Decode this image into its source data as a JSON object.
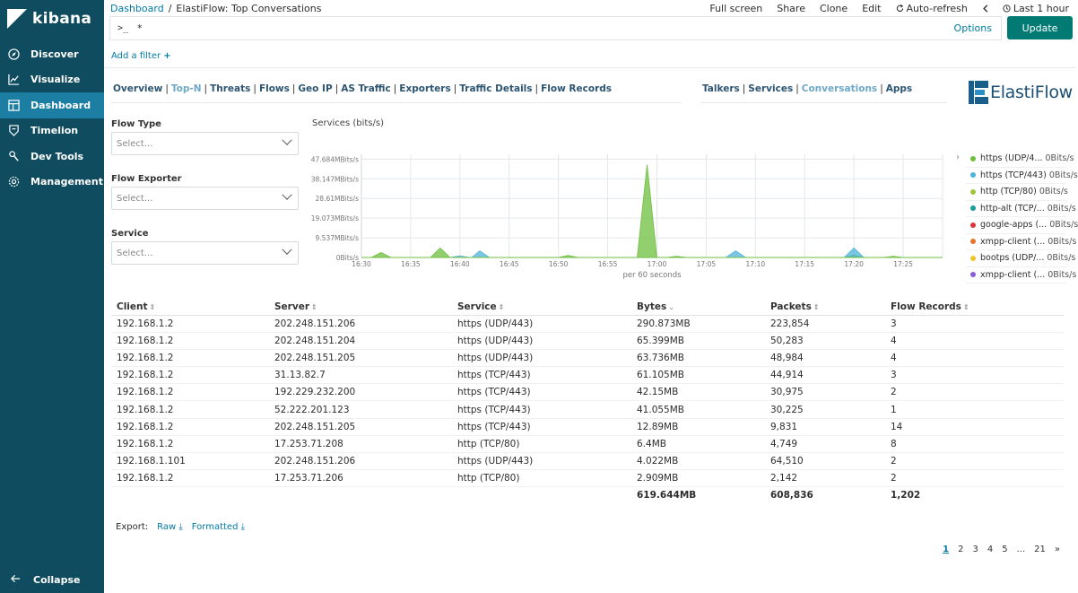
{
  "sidebar": {
    "brand": "kibana",
    "items": [
      {
        "label": "Discover",
        "icon": "compass-icon"
      },
      {
        "label": "Visualize",
        "icon": "chart-icon"
      },
      {
        "label": "Dashboard",
        "icon": "dashboard-icon",
        "active": true
      },
      {
        "label": "Timelion",
        "icon": "shield-icon"
      },
      {
        "label": "Dev Tools",
        "icon": "wrench-icon"
      },
      {
        "label": "Management",
        "icon": "gear-icon"
      }
    ],
    "collapse": "Collapse"
  },
  "breadcrumb": {
    "root": "Dashboard",
    "separator": "/",
    "current": "ElastiFlow: Top Conversations"
  },
  "top_actions": {
    "full_screen": "Full screen",
    "share": "Share",
    "clone": "Clone",
    "edit": "Edit",
    "auto_refresh": "Auto-refresh",
    "time": "Last 1 hour"
  },
  "query": {
    "prompt": ">_",
    "value": "*",
    "options": "Options",
    "update": "Update"
  },
  "filter": {
    "add": "Add a filter"
  },
  "nav_left": [
    "Overview",
    "Top-N",
    "Threats",
    "Flows",
    "Geo IP",
    "AS Traffic",
    "Exporters",
    "Traffic Details",
    "Flow Records"
  ],
  "nav_left_current": "Top-N",
  "nav_right": [
    "Talkers",
    "Services",
    "Conversations",
    "Apps"
  ],
  "nav_right_current": "Conversations",
  "logo_text": "ElastiFlow",
  "controls": [
    {
      "label": "Flow Type",
      "placeholder": "Select..."
    },
    {
      "label": "Flow Exporter",
      "placeholder": "Select..."
    },
    {
      "label": "Service",
      "placeholder": "Select..."
    }
  ],
  "chart_data": {
    "type": "area",
    "title": "Services (bits/s)",
    "xlabel": "per 60 seconds",
    "ylabel": "",
    "y_ticks": [
      "0Bits/s",
      "9.537MBits/s",
      "19.073MBits/s",
      "28.61MBits/s",
      "38.147MBits/s",
      "47.684MBits/s"
    ],
    "ylim": [
      0,
      50
    ],
    "x_ticks": [
      "16:30",
      "16:35",
      "16:40",
      "16:45",
      "16:50",
      "16:55",
      "17:00",
      "17:05",
      "17:10",
      "17:15",
      "17:20",
      "17:25"
    ],
    "x_minutes_range": [
      0,
      59
    ],
    "series": [
      {
        "name": "https (UDP/443)",
        "color": "#6dbf3f",
        "points": [
          [
            1,
            0
          ],
          [
            2,
            2.4
          ],
          [
            3,
            0
          ],
          [
            7,
            0
          ],
          [
            8,
            4.6
          ],
          [
            9,
            0
          ],
          [
            20,
            0
          ],
          [
            21,
            1.0
          ],
          [
            22,
            0
          ],
          [
            28,
            0
          ],
          [
            29,
            45
          ],
          [
            30,
            0
          ],
          [
            31,
            0
          ],
          [
            32,
            0.6
          ],
          [
            33,
            0
          ],
          [
            49,
            0
          ],
          [
            50,
            1.2
          ],
          [
            51,
            0
          ],
          [
            53,
            0
          ],
          [
            54,
            0.6
          ],
          [
            55,
            0
          ]
        ]
      },
      {
        "name": "https (TCP/443)",
        "color": "#4fb3d9",
        "points": [
          [
            9,
            0
          ],
          [
            10,
            0.8
          ],
          [
            11,
            0
          ],
          [
            11.2,
            0
          ],
          [
            12,
            3.2
          ],
          [
            13,
            0
          ],
          [
            37,
            0
          ],
          [
            38,
            3.2
          ],
          [
            39,
            0
          ],
          [
            49,
            0
          ],
          [
            50,
            4.6
          ],
          [
            51,
            0
          ]
        ]
      }
    ],
    "grid": true,
    "legend_position": "right"
  },
  "legend": [
    {
      "name": "https (UDP/4...",
      "value": "0Bits/s",
      "color": "#6dbf3f"
    },
    {
      "name": "https (TCP/443)",
      "value": "0Bits/s",
      "color": "#4fb3d9"
    },
    {
      "name": "http (TCP/80)",
      "value": "0Bits/s",
      "color": "#9ec63c"
    },
    {
      "name": "http-alt (TCP/...",
      "value": "0Bits/s",
      "color": "#1d9c9a"
    },
    {
      "name": "google-apps (...",
      "value": "0Bits/s",
      "color": "#d9363e"
    },
    {
      "name": "xmpp-client (...",
      "value": "0Bits/s",
      "color": "#e8742c"
    },
    {
      "name": "bootps (UDP/...",
      "value": "0Bits/s",
      "color": "#f2c12e"
    },
    {
      "name": "xmpp-client (...",
      "value": "0Bits/s",
      "color": "#8a5cd6"
    }
  ],
  "table": {
    "headers": [
      "Client",
      "Server",
      "Service",
      "Bytes",
      "Packets",
      "Flow Records"
    ],
    "rows": [
      [
        "192.168.1.2",
        "202.248.151.206",
        "https (UDP/443)",
        "290.873MB",
        "223,854",
        "3"
      ],
      [
        "192.168.1.2",
        "202.248.151.204",
        "https (UDP/443)",
        "65.399MB",
        "50,283",
        "4"
      ],
      [
        "192.168.1.2",
        "202.248.151.205",
        "https (UDP/443)",
        "63.736MB",
        "48,984",
        "4"
      ],
      [
        "192.168.1.2",
        "31.13.82.7",
        "https (TCP/443)",
        "61.105MB",
        "44,914",
        "3"
      ],
      [
        "192.168.1.2",
        "192.229.232.200",
        "https (TCP/443)",
        "42.15MB",
        "30,975",
        "2"
      ],
      [
        "192.168.1.2",
        "52.222.201.123",
        "https (TCP/443)",
        "41.055MB",
        "30,225",
        "1"
      ],
      [
        "192.168.1.2",
        "202.248.151.205",
        "https (TCP/443)",
        "12.89MB",
        "9,831",
        "14"
      ],
      [
        "192.168.1.2",
        "17.253.71.208",
        "http (TCP/80)",
        "6.4MB",
        "4,749",
        "8"
      ],
      [
        "192.168.1.101",
        "202.248.151.206",
        "https (UDP/443)",
        "4.022MB",
        "64,510",
        "2"
      ],
      [
        "192.168.1.2",
        "17.253.71.206",
        "http (TCP/80)",
        "2.909MB",
        "2,142",
        "2"
      ]
    ],
    "totals": [
      "",
      "",
      "",
      "619.644MB",
      "608,836",
      "1,202"
    ]
  },
  "export": {
    "label": "Export:",
    "raw": "Raw",
    "formatted": "Formatted"
  },
  "pager": [
    "1",
    "2",
    "3",
    "4",
    "5",
    "...",
    "21",
    "»"
  ]
}
